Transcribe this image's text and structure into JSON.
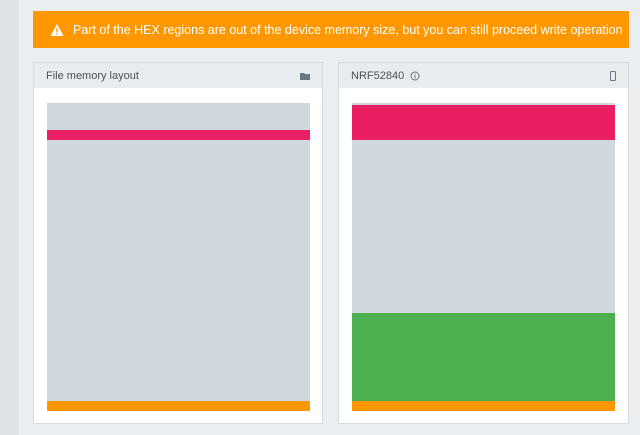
{
  "warning": {
    "icon": "warning-triangle-icon",
    "text": "Part of the HEX regions are out of the device memory size, but you can still proceed write operation"
  },
  "file_panel": {
    "title": "File memory layout",
    "action_icon": "folder-icon"
  },
  "device_panel": {
    "title": "NRF52840",
    "info_icon": "info-icon",
    "action_icon": "device-icon"
  },
  "colors": {
    "warning": "#ff9800",
    "unused_memory": "#cfd8dd",
    "region_red": "#e91e63",
    "region_green": "#4caf50",
    "region_orange": "#ff9800"
  }
}
